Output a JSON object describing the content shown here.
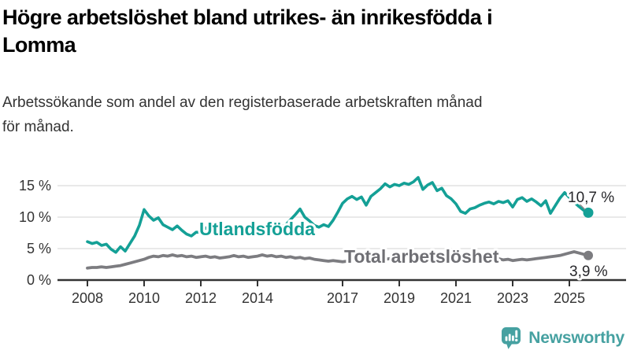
{
  "header": {
    "title_lines": [
      "Högre arbetslöshet bland utrikes- än inrikesfödda i",
      "Lomma"
    ],
    "subtitle_lines": [
      "Arbetssökande som andel av den registerbaserade arbetskraften månad",
      "för månad."
    ]
  },
  "chart_data": {
    "type": "line",
    "unit": "%",
    "x_start_year": 2008,
    "x_step_months": 2,
    "x_end_approx": "2025-09",
    "grid": true,
    "ylim": [
      0,
      17
    ],
    "yticks": [
      {
        "label": "0 %",
        "value": 0
      },
      {
        "label": "5 %",
        "value": 5
      },
      {
        "label": "10 %",
        "value": 10
      },
      {
        "label": "15 %",
        "value": 15
      }
    ],
    "xticks": [
      {
        "label": "2008",
        "year": 2008
      },
      {
        "label": "2010",
        "year": 2010
      },
      {
        "label": "2012",
        "year": 2012
      },
      {
        "label": "2014",
        "year": 2014
      },
      {
        "label": "2017",
        "year": 2017
      },
      {
        "label": "2019",
        "year": 2019
      },
      {
        "label": "2021",
        "year": 2021
      },
      {
        "label": "2023",
        "year": 2023
      },
      {
        "label": "2025",
        "year": 2025
      }
    ],
    "series": [
      {
        "name": "Utlandsfödda",
        "color": "#14a096",
        "end_value": 10.7,
        "end_label": "10,7 %",
        "values": [
          6.1,
          5.8,
          6.0,
          5.5,
          5.7,
          4.9,
          4.4,
          5.3,
          4.6,
          5.8,
          7.0,
          8.7,
          11.2,
          10.2,
          9.5,
          9.9,
          8.8,
          8.4,
          8.0,
          8.6,
          7.9,
          7.3,
          7.0,
          7.6,
          7.6,
          8.3,
          7.8,
          8.1,
          7.5,
          7.9,
          8.2,
          7.7,
          7.2,
          7.9,
          8.3,
          7.8,
          8.1,
          8.5,
          8.0,
          7.3,
          8.2,
          8.4,
          8.8,
          9.6,
          10.4,
          11.3,
          10.0,
          9.4,
          8.7,
          8.4,
          8.8,
          8.5,
          9.5,
          10.8,
          12.2,
          12.9,
          13.3,
          12.8,
          13.2,
          11.9,
          13.3,
          13.9,
          14.5,
          15.3,
          14.8,
          15.2,
          15.0,
          15.4,
          15.2,
          15.6,
          16.3,
          14.4,
          15.1,
          15.5,
          14.2,
          14.6,
          13.4,
          12.9,
          12.1,
          10.9,
          10.6,
          11.3,
          11.5,
          11.9,
          12.2,
          12.4,
          12.1,
          12.5,
          12.3,
          12.6,
          11.6,
          12.8,
          13.1,
          12.5,
          12.9,
          12.4,
          11.8,
          12.6,
          10.6,
          11.8,
          13.0,
          13.9,
          13.1,
          12.4,
          11.7,
          11.1,
          10.7
        ]
      },
      {
        "name": "Total arbetslöshet",
        "color": "#7c7c80",
        "label_color": "#6f6f74",
        "end_value": 3.9,
        "end_label": "3,9 %",
        "values": [
          1.9,
          2.0,
          2.0,
          2.1,
          2.0,
          2.1,
          2.2,
          2.3,
          2.5,
          2.7,
          2.9,
          3.1,
          3.3,
          3.6,
          3.8,
          3.7,
          3.9,
          3.8,
          4.0,
          3.8,
          3.9,
          3.7,
          3.8,
          3.6,
          3.7,
          3.8,
          3.6,
          3.7,
          3.5,
          3.6,
          3.7,
          3.9,
          3.7,
          3.8,
          3.6,
          3.7,
          3.8,
          4.0,
          3.8,
          3.9,
          3.7,
          3.8,
          3.6,
          3.7,
          3.5,
          3.6,
          3.4,
          3.5,
          3.3,
          3.2,
          3.1,
          3.0,
          3.1,
          3.0,
          2.9,
          3.0,
          3.1,
          3.0,
          3.1,
          3.2,
          3.3,
          3.2,
          3.4,
          3.3,
          3.4,
          3.3,
          3.4,
          3.5,
          3.4,
          3.6,
          3.5,
          3.6,
          3.8,
          4.0,
          4.1,
          4.0,
          3.9,
          3.8,
          3.7,
          3.8,
          3.6,
          3.7,
          3.5,
          3.6,
          3.4,
          3.5,
          3.3,
          3.4,
          3.2,
          3.3,
          3.1,
          3.2,
          3.3,
          3.2,
          3.3,
          3.4,
          3.5,
          3.6,
          3.7,
          3.8,
          3.9,
          4.1,
          4.3,
          4.5,
          4.3,
          4.1,
          3.9
        ]
      }
    ],
    "colors": {
      "axis": "#333333",
      "gridline": "#dcdcdc",
      "value_label": "#26262a"
    }
  },
  "footer": {
    "brand": "Newsworthy",
    "logo_color": "#46a1a1"
  }
}
